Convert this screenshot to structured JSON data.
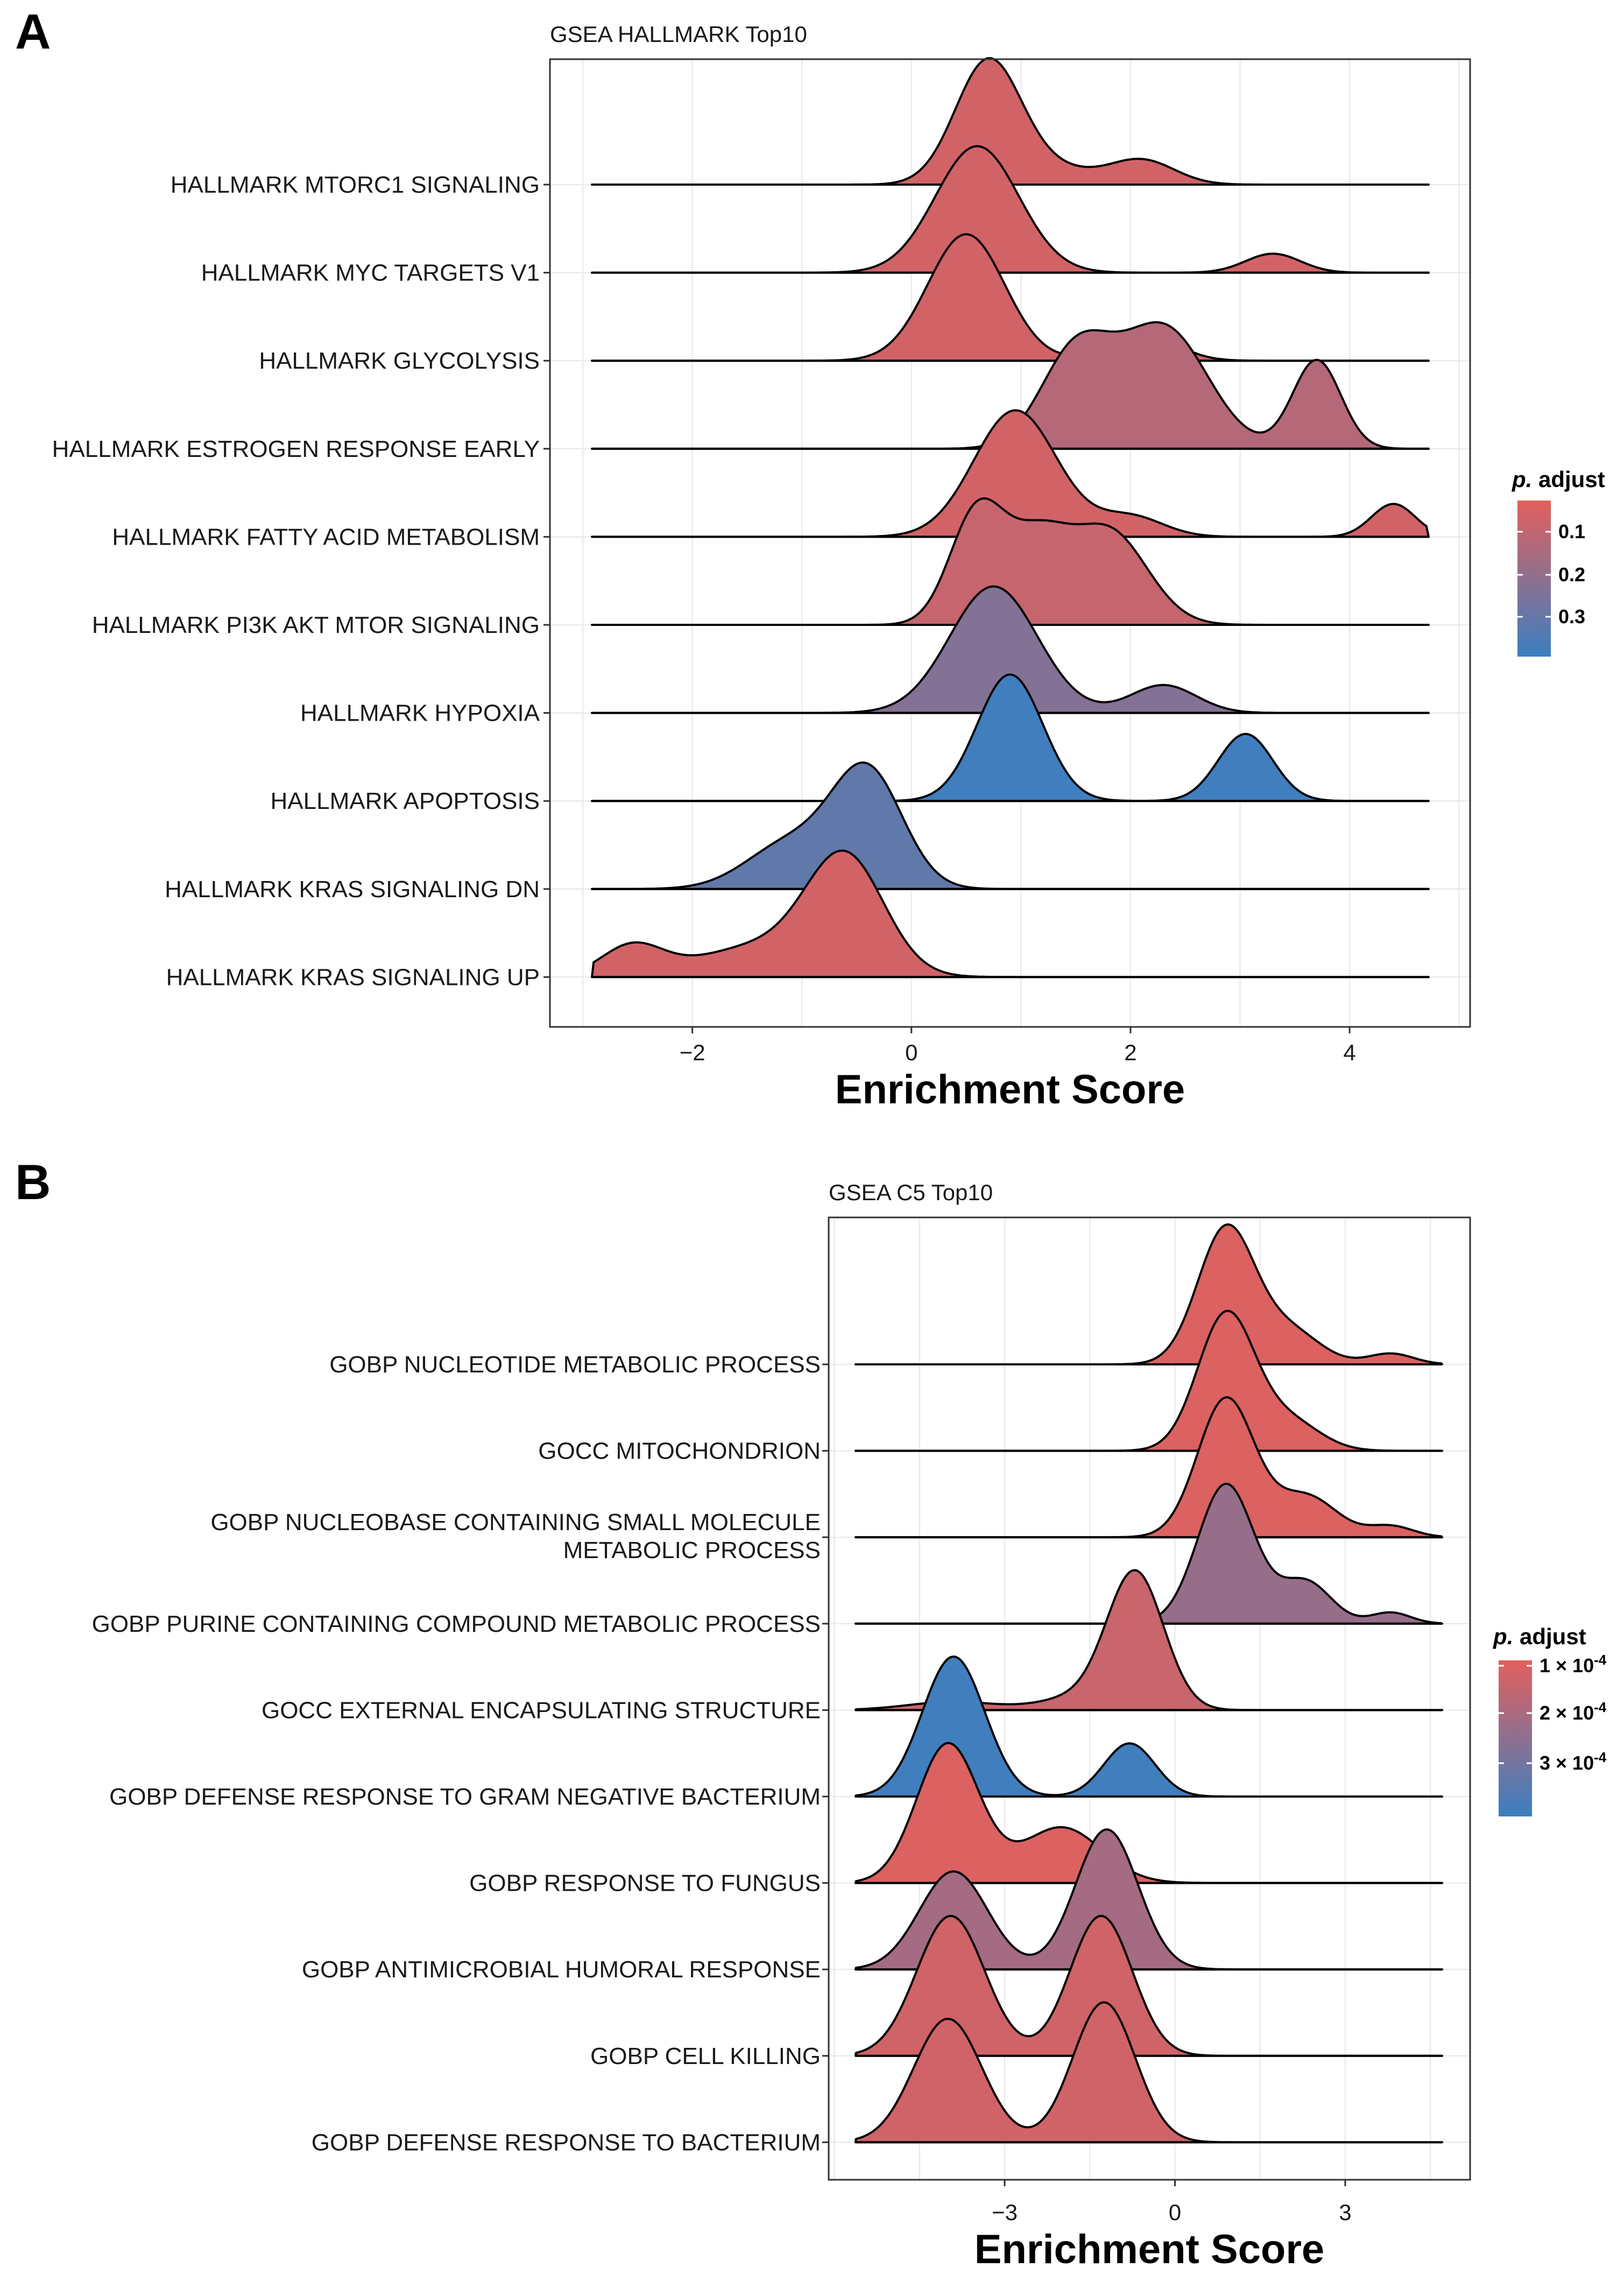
{
  "panels": [
    {
      "letter": "A",
      "title": "GSEA HALLMARK Top10",
      "xlabel": "Enrichment Score",
      "legend": {
        "title": "p. adjust",
        "labels": [
          "0.1",
          "0.2",
          "0.3"
        ],
        "colors": {
          "low": "#e2605d",
          "high": "#3a7fc1"
        }
      },
      "chart_data": {
        "type": "ridgeline",
        "title": "GSEA HALLMARK Top10",
        "xlabel": "Enrichment Score",
        "x_range": [
          -3.3,
          5.1
        ],
        "xticks": [
          -2,
          0,
          2,
          4
        ],
        "color_scale": {
          "variable": "p. adjust",
          "range": [
            0.05,
            0.35
          ],
          "low_color": "#e2605d",
          "high_color": "#3a7fc1"
        },
        "series": [
          {
            "name": "HALLMARK MTORC1 SIGNALING",
            "p_adjust": 0.08,
            "peaks": [
              [
                0.7,
                0.3,
                1.0
              ],
              [
                1.3,
                0.35,
                0.12
              ],
              [
                2.1,
                0.3,
                0.2
              ]
            ]
          },
          {
            "name": "HALLMARK MYC TARGETS V1",
            "p_adjust": 0.08,
            "peaks": [
              [
                0.6,
                0.38,
                1.0
              ],
              [
                3.3,
                0.25,
                0.15
              ]
            ]
          },
          {
            "name": "HALLMARK GLYCOLYSIS",
            "p_adjust": 0.08,
            "peaks": [
              [
                0.5,
                0.35,
                1.0
              ],
              [
                2.1,
                0.3,
                0.23
              ]
            ]
          },
          {
            "name": "HALLMARK ESTROGEN RESPONSE EARLY",
            "p_adjust": 0.13,
            "peaks": [
              [
                1.5,
                0.32,
                0.65
              ],
              [
                2.3,
                0.4,
                0.82
              ],
              [
                3.7,
                0.22,
                0.6
              ]
            ]
          },
          {
            "name": "HALLMARK FATTY ACID METABOLISM",
            "p_adjust": 0.08,
            "peaks": [
              [
                0.95,
                0.38,
                1.0
              ],
              [
                2.0,
                0.3,
                0.16
              ],
              [
                4.4,
                0.2,
                0.26
              ]
            ]
          },
          {
            "name": "HALLMARK PI3K AKT MTOR SIGNALING",
            "p_adjust": 0.1,
            "peaks": [
              [
                0.6,
                0.25,
                0.72
              ],
              [
                1.15,
                0.28,
                0.5
              ],
              [
                1.8,
                0.35,
                0.6
              ]
            ]
          },
          {
            "name": "HALLMARK HYPOXIA",
            "p_adjust": 0.22,
            "peaks": [
              [
                0.75,
                0.4,
                1.0
              ],
              [
                2.3,
                0.3,
                0.22
              ]
            ]
          },
          {
            "name": "HALLMARK APOPTOSIS",
            "p_adjust": 0.34,
            "peaks": [
              [
                0.9,
                0.3,
                1.0
              ],
              [
                3.05,
                0.25,
                0.53
              ]
            ]
          },
          {
            "name": "HALLMARK KRAS SIGNALING DN",
            "p_adjust": 0.28,
            "peaks": [
              [
                -0.4,
                0.32,
                1.0
              ],
              [
                -1.1,
                0.4,
                0.4
              ]
            ]
          },
          {
            "name": "HALLMARK KRAS SIGNALING UP",
            "p_adjust": 0.08,
            "peaks": [
              [
                -2.55,
                0.28,
                0.27
              ],
              [
                -0.6,
                0.35,
                1.0
              ],
              [
                -1.35,
                0.6,
                0.28
              ]
            ]
          }
        ]
      }
    },
    {
      "letter": "B",
      "title": "GSEA C5 Top10",
      "xlabel": "Enrichment Score",
      "legend": {
        "title": "p. adjust",
        "labels": [
          "1 × 10",
          "2 × 10",
          "3 × 10"
        ],
        "exponent": "-4",
        "colors": {
          "low": "#e2605d",
          "high": "#3a7fc1"
        }
      },
      "chart_data": {
        "type": "ridgeline",
        "title": "GSEA C5 Top10",
        "xlabel": "Enrichment Score",
        "x_range": [
          -6.1,
          5.2
        ],
        "xticks": [
          -3,
          0,
          3
        ],
        "color_scale": {
          "variable": "p. adjust",
          "range": [
            8e-05,
            0.00035
          ],
          "low_color": "#e2605d",
          "high_color": "#3a7fc1"
        },
        "series": [
          {
            "name": "GOBP NUCLEOTIDE METABOLIC PROCESS",
            "p_adjust": 9e-05,
            "peaks": [
              [
                0.9,
                0.5,
                1.0
              ],
              [
                2.0,
                0.55,
                0.25
              ],
              [
                3.8,
                0.4,
                0.08
              ]
            ]
          },
          {
            "name": "GOCC MITOCHONDRION",
            "p_adjust": 9e-05,
            "peaks": [
              [
                0.9,
                0.5,
                1.0
              ],
              [
                2.0,
                0.55,
                0.22
              ]
            ]
          },
          {
            "name": "GOBP NUCLEOBASE CONTAINING SMALL MOLECULE\nMETABOLIC PROCESS",
            "p_adjust": 9e-05,
            "peaks": [
              [
                0.9,
                0.5,
                1.0
              ],
              [
                2.3,
                0.55,
                0.3
              ],
              [
                3.8,
                0.4,
                0.08
              ]
            ]
          },
          {
            "name": "GOBP PURINE CONTAINING COMPOUND METABOLIC PROCESS",
            "p_adjust": 0.0002,
            "peaks": [
              [
                0.9,
                0.5,
                1.0
              ],
              [
                2.3,
                0.45,
                0.3
              ],
              [
                3.8,
                0.35,
                0.08
              ]
            ]
          },
          {
            "name": "GOCC EXTERNAL ENCAPSULATING STRUCTURE",
            "p_adjust": 0.00012,
            "peaks": [
              [
                -0.7,
                0.5,
                1.0
              ],
              [
                -1.8,
                0.6,
                0.08
              ],
              [
                -3.9,
                0.8,
                0.06
              ]
            ]
          },
          {
            "name": "GOBP DEFENSE RESPONSE TO GRAM NEGATIVE BACTERIUM",
            "p_adjust": 0.00034,
            "peaks": [
              [
                -3.9,
                0.55,
                1.0
              ],
              [
                -0.8,
                0.45,
                0.38
              ]
            ]
          },
          {
            "name": "GOBP RESPONSE TO FUNGUS",
            "p_adjust": 9e-05,
            "peaks": [
              [
                -4.0,
                0.55,
                1.0
              ],
              [
                -2.0,
                0.7,
                0.4
              ]
            ]
          },
          {
            "name": "GOBP ANTIMICROBIAL HUMORAL RESPONSE",
            "p_adjust": 0.00018,
            "peaks": [
              [
                -3.9,
                0.6,
                0.7
              ],
              [
                -1.2,
                0.55,
                1.0
              ]
            ]
          },
          {
            "name": "GOBP CELL KILLING",
            "p_adjust": 0.00011,
            "peaks": [
              [
                -3.95,
                0.6,
                0.75
              ],
              [
                -1.3,
                0.55,
                0.75
              ]
            ]
          },
          {
            "name": "GOBP DEFENSE RESPONSE TO BACTERIUM",
            "p_adjust": 0.00011,
            "peaks": [
              [
                -4.0,
                0.6,
                0.75
              ],
              [
                -1.25,
                0.55,
                0.85
              ]
            ]
          }
        ]
      }
    }
  ]
}
